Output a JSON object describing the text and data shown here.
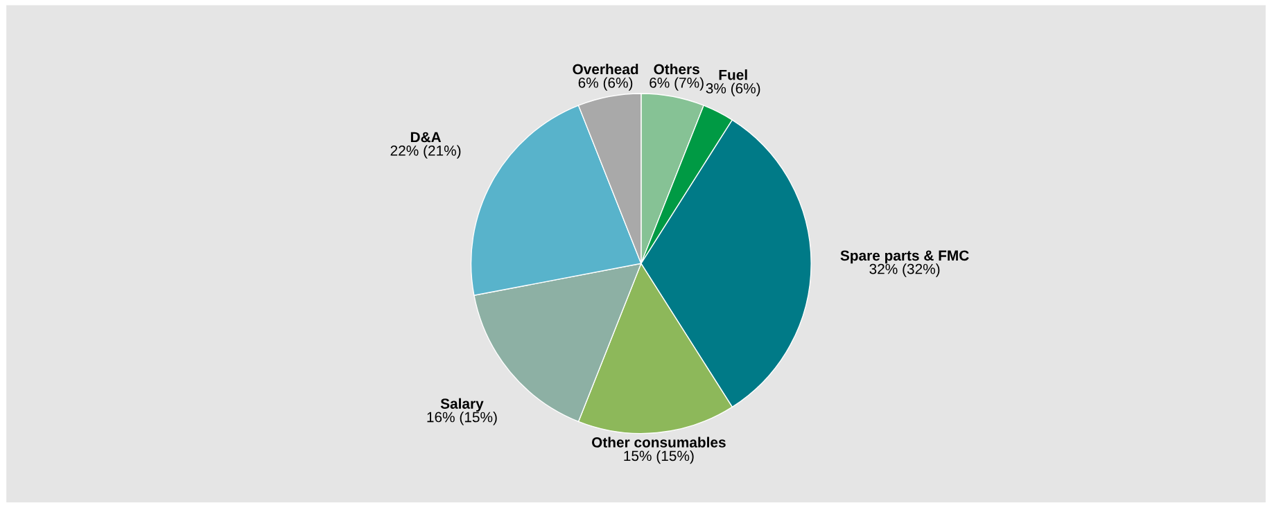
{
  "chart_data": {
    "type": "pie",
    "categories": [
      "Others",
      "Fuel",
      "Spare parts & FMC",
      "Other consumables",
      "Salary",
      "D&A",
      "Overhead"
    ],
    "values": [
      6,
      3,
      32,
      15,
      16,
      22,
      6
    ],
    "value_labels": [
      "6% (7%)",
      "3% (6%)",
      "32% (32%)",
      "15% (15%)",
      "16% (15%)",
      "22% (21%)",
      "6% (6%)"
    ],
    "colors": [
      "#86c295",
      "#009a44",
      "#007a87",
      "#8db85a",
      "#8db0a4",
      "#58b3cb",
      "#a9a9a9"
    ],
    "legend": false
  }
}
